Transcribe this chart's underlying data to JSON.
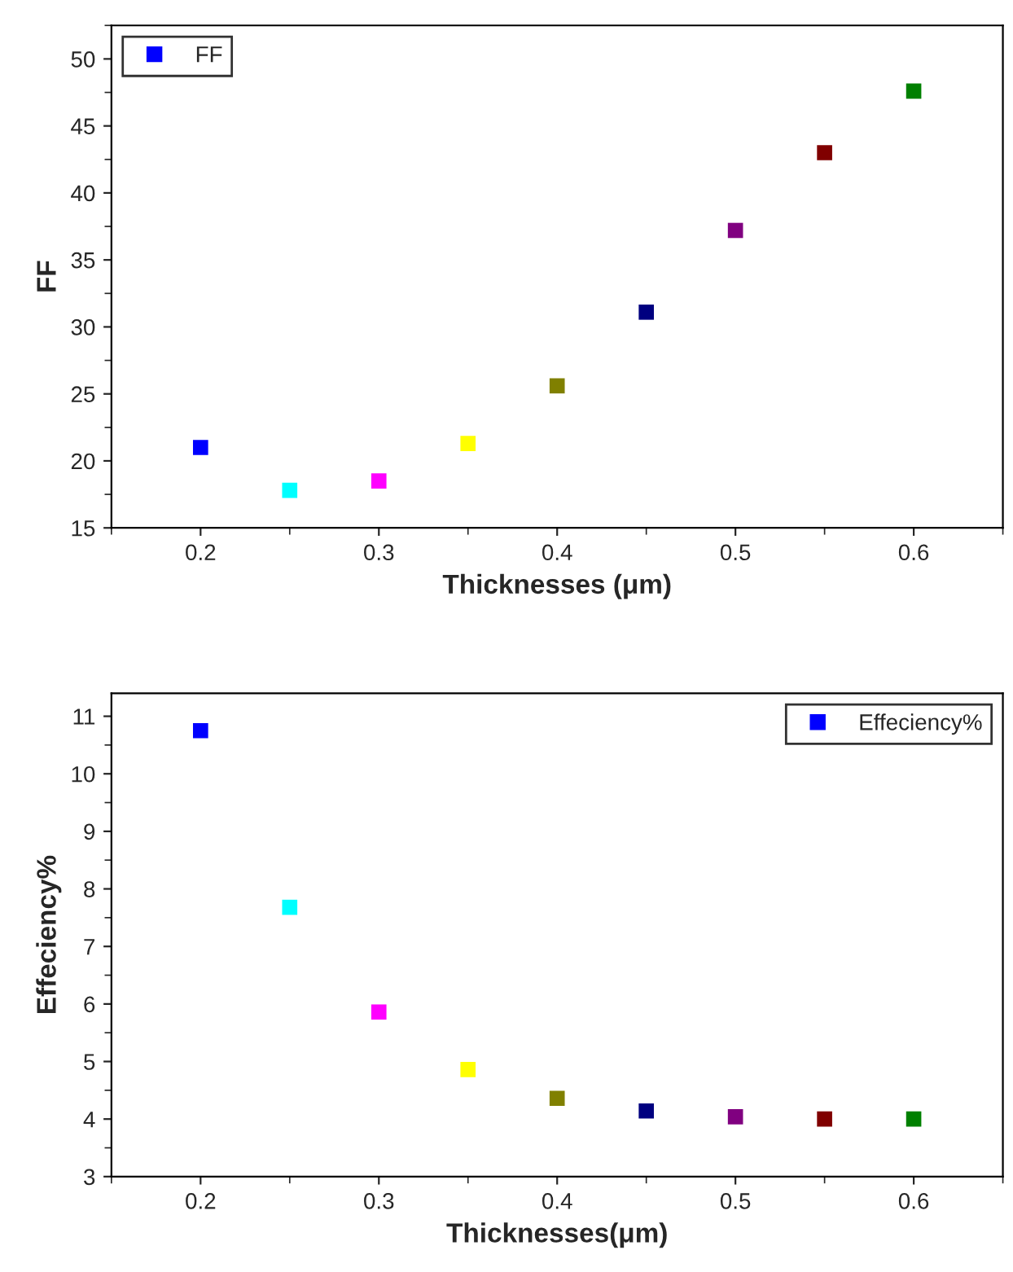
{
  "chart_data": [
    {
      "type": "scatter",
      "xlabel": "Thicknesses (μm)",
      "ylabel": "FF",
      "x": [
        0.2,
        0.25,
        0.3,
        0.35,
        0.4,
        0.45,
        0.5,
        0.55,
        0.6
      ],
      "series": [
        {
          "name": "FF",
          "color": "#0000ff",
          "colors": [
            "#0000ff",
            "#00ffff",
            "#ff00ff",
            "#ffff00",
            "#808000",
            "#000080",
            "#800080",
            "#800000",
            "#008000"
          ],
          "values": [
            21.0,
            17.8,
            18.5,
            21.3,
            25.6,
            31.1,
            37.2,
            43.0,
            47.6
          ]
        }
      ],
      "xlim": [
        0.15,
        0.65
      ],
      "xticks": [
        0.2,
        0.3,
        0.4,
        0.5,
        0.6
      ],
      "ylim": [
        15,
        52.5
      ],
      "yticks": [
        15,
        20,
        25,
        30,
        35,
        40,
        45,
        50
      ],
      "marker": "square",
      "grid": false,
      "legend": "top left"
    },
    {
      "type": "scatter",
      "xlabel": "Thicknesses(μm)",
      "ylabel": "Effeciency%",
      "x": [
        0.2,
        0.25,
        0.3,
        0.35,
        0.4,
        0.45,
        0.5,
        0.55,
        0.6
      ],
      "series": [
        {
          "name": "Effeciency%",
          "color": "#0000ff",
          "colors": [
            "#0000ff",
            "#00ffff",
            "#ff00ff",
            "#ffff00",
            "#808000",
            "#000080",
            "#800080",
            "#800000",
            "#008000"
          ],
          "values": [
            10.75,
            7.68,
            5.86,
            4.86,
            4.36,
            4.14,
            4.04,
            4.0,
            4.0
          ]
        }
      ],
      "xlim": [
        0.15,
        0.65
      ],
      "xticks": [
        0.2,
        0.3,
        0.4,
        0.5,
        0.6
      ],
      "ylim": [
        3,
        11.4
      ],
      "yticks": [
        3,
        4,
        5,
        6,
        7,
        8,
        9,
        10,
        11
      ],
      "marker": "square",
      "grid": false,
      "legend": "top right"
    }
  ]
}
